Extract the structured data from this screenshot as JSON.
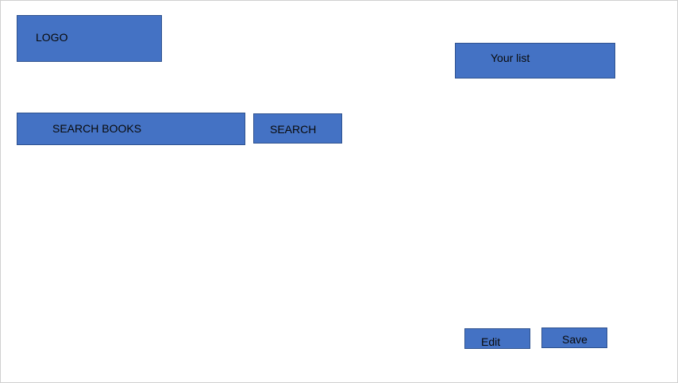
{
  "header": {
    "logo_label": "LOGO",
    "your_list_label": "Your list"
  },
  "search": {
    "field_label": "SEARCH BOOKS",
    "button_label": "SEARCH"
  },
  "list_actions": {
    "edit_label": "Edit",
    "save_label": "Save"
  },
  "colors": {
    "block_fill": "#4472c4",
    "block_border": "#2f528f",
    "background": "#ffffff"
  }
}
